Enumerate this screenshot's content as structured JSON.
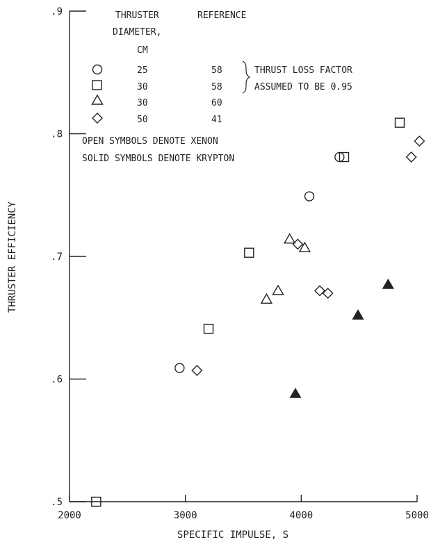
{
  "chart_data": {
    "type": "scatter",
    "xlabel": "SPECIFIC IMPULSE, S",
    "ylabel": "THRUSTER EFFICIENCY",
    "xlim": [
      2000,
      5000
    ],
    "ylim": [
      0.5,
      0.9
    ],
    "x_ticks": [
      {
        "value": 2000,
        "label": "2000"
      },
      {
        "value": 3000,
        "label": "3000"
      },
      {
        "value": 4000,
        "label": "4000"
      },
      {
        "value": 5000,
        "label": "5000"
      }
    ],
    "y_ticks": [
      {
        "value": 0.5,
        "label": ".5"
      },
      {
        "value": 0.6,
        "label": ".6"
      },
      {
        "value": 0.7,
        "label": ".7"
      },
      {
        "value": 0.8,
        "label": ".8"
      },
      {
        "value": 0.9,
        "label": ".9"
      }
    ],
    "grid": false,
    "legend": {
      "header": [
        "THRUSTER",
        "DIAMETER,",
        "CM",
        "REFERENCE"
      ],
      "entries": [
        {
          "symbol": "circle",
          "diameter": "25",
          "reference": "58"
        },
        {
          "symbol": "square",
          "diameter": "30",
          "reference": "58"
        },
        {
          "symbol": "triangle",
          "diameter": "30",
          "reference": "60"
        },
        {
          "symbol": "diamond",
          "diameter": "50",
          "reference": "41"
        }
      ],
      "brace_note": [
        "THRUST LOSS FACTOR",
        "ASSUMED TO BE 0.95"
      ],
      "notes": [
        "OPEN SYMBOLS DENOTE XENON",
        "SOLID SYMBOLS DENOTE KRYPTON"
      ]
    },
    "series": [
      {
        "symbol": "circle",
        "filled": false,
        "x": [
          2950,
          4070,
          4330
        ],
        "y": [
          0.609,
          0.749,
          0.781
        ]
      },
      {
        "symbol": "square",
        "filled": false,
        "x": [
          2230,
          3200,
          3550,
          4370,
          4850
        ],
        "y": [
          0.5,
          0.641,
          0.703,
          0.781,
          0.809
        ]
      },
      {
        "symbol": "triangle",
        "filled": false,
        "x": [
          3700,
          3800,
          3900,
          4030
        ],
        "y": [
          0.665,
          0.672,
          0.714,
          0.707
        ]
      },
      {
        "symbol": "triangle",
        "filled": true,
        "x": [
          3950,
          4490,
          4750
        ],
        "y": [
          0.588,
          0.652,
          0.677
        ]
      },
      {
        "symbol": "diamond",
        "filled": false,
        "x": [
          3100,
          3970,
          4160,
          4230,
          4950,
          5020
        ],
        "y": [
          0.607,
          0.71,
          0.672,
          0.67,
          0.781,
          0.794
        ]
      }
    ]
  }
}
